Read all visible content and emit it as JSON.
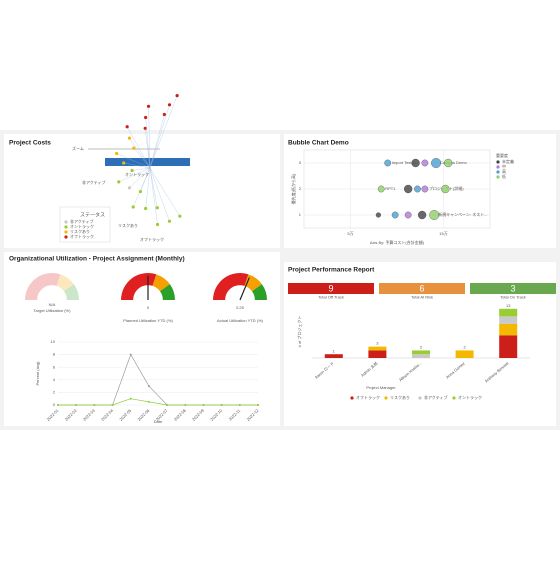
{
  "project_costs": {
    "title": "Project Costs",
    "zoom_label": "ズーム",
    "legend_title": "ステータス",
    "legend": [
      {
        "label": "非アクティブ",
        "color": "#c9c9c9"
      },
      {
        "label": "オントラック",
        "color": "#9acd32"
      },
      {
        "label": "リスクあり",
        "color": "#f5b800"
      },
      {
        "label": "オフトラック",
        "color": "#cc1f1a"
      }
    ],
    "branches": [
      "オントラック",
      "非アクティブ",
      "リスクあり",
      "オフトラック"
    ],
    "nodes": [
      1,
      1,
      1,
      1,
      1,
      1,
      1,
      0,
      1,
      1,
      2,
      2,
      2,
      2,
      3,
      3,
      3,
      3,
      3,
      3,
      3
    ]
  },
  "bubble": {
    "title": "Bubble Chart Demo",
    "type": "scatter",
    "legend_title": "重要度",
    "x_label": "Axis By: 予算コスト(合計金額)",
    "y_label": "優先度(低から高)",
    "xlim": [
      0,
      200000
    ],
    "xticks": [
      {
        "value": 50000,
        "label": "5万"
      },
      {
        "value": 150000,
        "label": "15万"
      }
    ],
    "ylim": [
      0.5,
      3.5
    ],
    "yticks": [
      1,
      2,
      3
    ],
    "groups": [
      {
        "name": "未定義",
        "color": "#444444"
      },
      {
        "name": "中",
        "color": "#b07ad6"
      },
      {
        "name": "高",
        "color": "#4a9fd8"
      },
      {
        "name": "低",
        "color": "#8fcf6a"
      }
    ],
    "points": [
      {
        "x": 90000,
        "y": 3,
        "size": 4,
        "group": 2,
        "label": "Import Test.p..."
      },
      {
        "x": 120000,
        "y": 3,
        "size": 5,
        "group": 0
      },
      {
        "x": 130000,
        "y": 3,
        "size": 4,
        "group": 1
      },
      {
        "x": 142000,
        "y": 3,
        "size": 6,
        "group": 2,
        "label": "Campus Demo"
      },
      {
        "x": 155000,
        "y": 3,
        "size": 5,
        "group": 3
      },
      {
        "x": 83000,
        "y": 2,
        "size": 4,
        "group": 3,
        "label": "RPT1"
      },
      {
        "x": 112000,
        "y": 2,
        "size": 5,
        "group": 0
      },
      {
        "x": 122000,
        "y": 2,
        "size": 4,
        "group": 2
      },
      {
        "x": 130000,
        "y": 2,
        "size": 4,
        "group": 1,
        "label": "プロジェクト(詳細)"
      },
      {
        "x": 152000,
        "y": 2,
        "size": 5,
        "group": 3
      },
      {
        "x": 80000,
        "y": 1,
        "size": 3,
        "group": 0
      },
      {
        "x": 98000,
        "y": 1,
        "size": 4,
        "group": 2
      },
      {
        "x": 112000,
        "y": 1,
        "size": 4,
        "group": 1
      },
      {
        "x": 127000,
        "y": 1,
        "size": 5,
        "group": 0
      },
      {
        "x": 140000,
        "y": 1,
        "size": 6,
        "group": 3,
        "label": "新規キャンペーン: ネスト..."
      }
    ]
  },
  "utilization": {
    "title": "Organizational Utilization - Project Assignment (Monthly)",
    "gauge_range": [
      -1,
      1
    ],
    "gauges": [
      {
        "label": "Target Utilization (%)",
        "value_label": "N/A",
        "faded": true
      },
      {
        "label": "Planned Utilization YTD (%)",
        "value": 0
      },
      {
        "label": "Actual Utilization YTD (%)",
        "value": 0.25
      }
    ],
    "line": {
      "type": "line",
      "x_label": "Date",
      "y_label": "Percent (avg)",
      "categories": [
        "2022-01",
        "2022-02",
        "2022-03",
        "2022-04",
        "2022-05",
        "2022-06",
        "2022-07",
        "2022-08",
        "2022-09",
        "2022-10",
        "2022-11",
        "2022-12"
      ],
      "ylim": [
        0,
        10
      ],
      "yticks": [
        0,
        2,
        4,
        6,
        8,
        10
      ],
      "series": [
        {
          "color": "#9e9e9e",
          "values": [
            0,
            0,
            0,
            0,
            8,
            3,
            0,
            0,
            0,
            0,
            0,
            0
          ]
        },
        {
          "color": "#8fcf3a",
          "values": [
            0,
            0,
            0,
            0,
            1,
            0.5,
            0,
            0,
            0,
            0,
            0,
            0
          ]
        }
      ]
    }
  },
  "performance": {
    "title": "Project Performance Report",
    "kpis": [
      {
        "value": 9,
        "label": "Total Off Track",
        "color": "#cc1f1a"
      },
      {
        "value": 6,
        "label": "Total At Risk",
        "color": "#e8913c"
      },
      {
        "value": 3,
        "label": "Total On Track",
        "color": "#6aa84f"
      }
    ],
    "chart": {
      "type": "bar",
      "x_label": "Project Manager",
      "y_label": "# of プロジェクト",
      "categories": [
        "Aaron ロード",
        "Admin 太郎",
        "Allison Kostiw...",
        "Anna Gomez",
        "Anthony Bennett"
      ],
      "ylim": [
        0,
        14
      ],
      "series": [
        {
          "name": "オフトラック",
          "color": "#cc1f1a",
          "values": [
            1,
            2,
            0,
            0,
            6
          ]
        },
        {
          "name": "リスクあり",
          "color": "#f5b800",
          "values": [
            0,
            1,
            0,
            2,
            3
          ]
        },
        {
          "name": "非アクティブ",
          "color": "#c9c9c9",
          "values": [
            0,
            0,
            1,
            0,
            2
          ]
        },
        {
          "name": "オントラック",
          "color": "#9acd32",
          "values": [
            0,
            0,
            1,
            0,
            2
          ]
        }
      ],
      "totals": [
        1,
        3,
        2,
        2,
        13
      ]
    }
  }
}
